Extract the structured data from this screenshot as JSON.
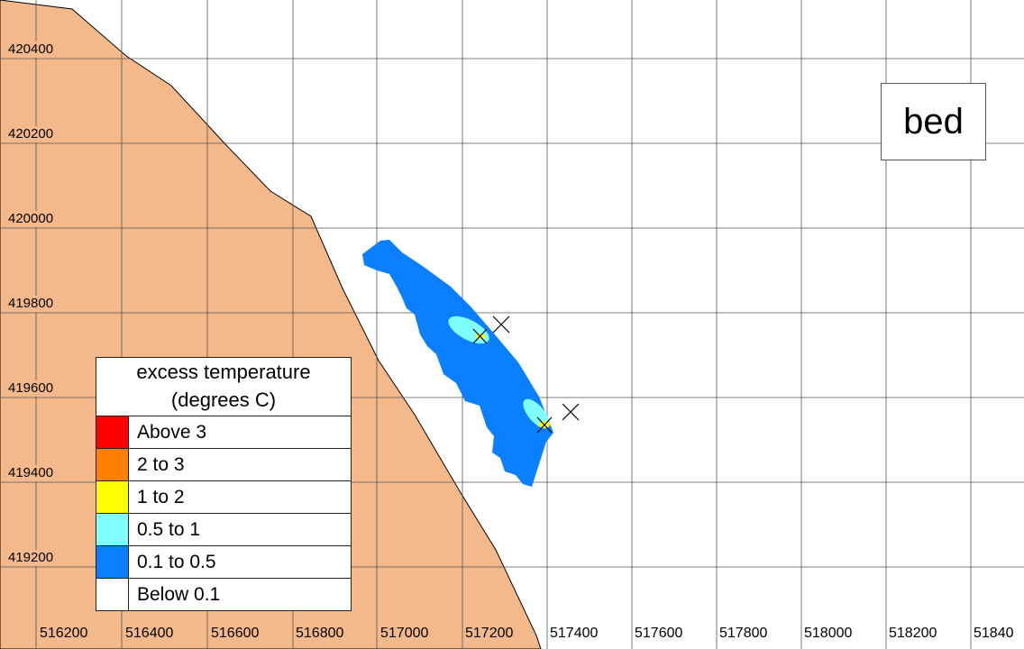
{
  "map": {
    "panel_title": "bed",
    "x_ticks": [
      "516200",
      "516400",
      "516600",
      "516800",
      "517000",
      "517200",
      "517400",
      "517600",
      "517800",
      "518000",
      "518200",
      "51840"
    ],
    "y_ticks": [
      "420400",
      "420200",
      "420000",
      "419800",
      "419600",
      "419400",
      "419200"
    ],
    "colors": {
      "land": "#f3b98a",
      "water": "#ffffff",
      "grid": "#555555"
    }
  },
  "legend": {
    "title_line1": "excess temperature",
    "title_line2": "(degrees C)",
    "items": [
      {
        "label": "Above 3",
        "color": "#ff0000"
      },
      {
        "label": "2 to 3",
        "color": "#ff7f00"
      },
      {
        "label": "1 to 2",
        "color": "#ffff00"
      },
      {
        "label": "0.5 to 1",
        "color": "#80ffff"
      },
      {
        "label": "0.1 to 0.5",
        "color": "#0a7fff"
      },
      {
        "label": "Below 0.1",
        "color": "#ffffff"
      }
    ]
  },
  "outfalls": [
    {
      "name": "outfall-marker-north"
    },
    {
      "name": "outfall-marker-south"
    }
  ]
}
